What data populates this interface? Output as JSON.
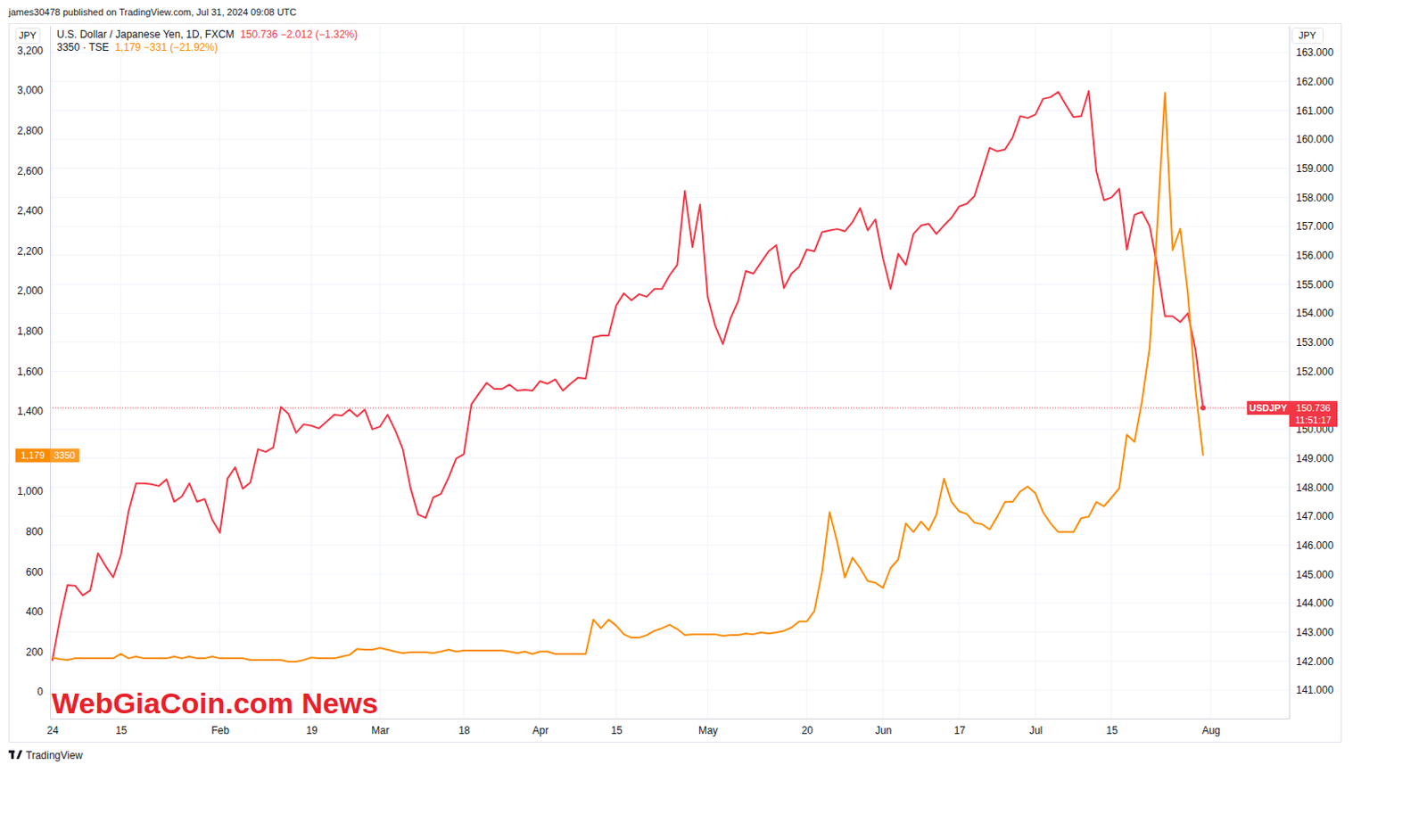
{
  "chart_data": {
    "type": "line",
    "title": "james30478 published on TradingView.com, Jul 31, 2024 09:08 UTC",
    "categories": [
      "24",
      null,
      null,
      null,
      null,
      null,
      null,
      null,
      null,
      "15",
      null,
      null,
      null,
      null,
      null,
      null,
      null,
      null,
      null,
      null,
      null,
      null,
      "Feb",
      null,
      null,
      null,
      null,
      null,
      null,
      null,
      null,
      null,
      null,
      null,
      "19",
      null,
      null,
      null,
      null,
      null,
      null,
      null,
      null,
      "Mar",
      null,
      null,
      null,
      null,
      null,
      null,
      null,
      null,
      null,
      null,
      "18",
      null,
      null,
      null,
      null,
      null,
      null,
      null,
      null,
      null,
      "Apr",
      null,
      null,
      null,
      null,
      null,
      null,
      null,
      null,
      null,
      "15",
      null,
      null,
      null,
      null,
      null,
      null,
      null,
      null,
      null,
      null,
      null,
      "May",
      null,
      null,
      null,
      null,
      null,
      null,
      null,
      null,
      null,
      null,
      null,
      null,
      "20",
      null,
      null,
      null,
      null,
      null,
      null,
      null,
      null,
      null,
      "Jun",
      null,
      null,
      null,
      null,
      null,
      null,
      null,
      null,
      null,
      "17",
      null,
      null,
      null,
      null,
      null,
      null,
      null,
      null,
      null,
      "Jul",
      null,
      null,
      null,
      null,
      null,
      null,
      null,
      null,
      null,
      "15",
      null,
      null,
      null,
      null,
      null,
      null,
      null,
      null,
      null,
      null,
      null,
      null,
      "Aug",
      null,
      null,
      null,
      null,
      null,
      null,
      null,
      null,
      null,
      null
    ],
    "series": [
      {
        "name": "U.S. Dollar / Japanese Yen, 1D, FXCM",
        "color": "#f23645",
        "axis": "y2",
        "values": [
          142.01,
          143.43,
          144.62,
          144.6,
          144.27,
          144.44,
          145.72,
          145.28,
          144.89,
          145.66,
          147.15,
          148.13,
          148.13,
          148.1,
          148.04,
          148.27,
          147.5,
          147.68,
          148.13,
          147.5,
          147.59,
          146.88,
          146.43,
          148.3,
          148.69,
          147.95,
          148.16,
          149.31,
          149.22,
          149.37,
          150.77,
          150.53,
          149.88,
          150.17,
          150.12,
          150.03,
          150.26,
          150.5,
          150.47,
          150.68,
          150.44,
          150.68,
          150.0,
          150.09,
          150.5,
          149.97,
          149.31,
          147.98,
          147.06,
          146.94,
          147.65,
          147.77,
          148.33,
          148.99,
          149.14,
          150.86,
          151.24,
          151.6,
          151.39,
          151.39,
          151.54,
          151.33,
          151.36,
          151.33,
          151.66,
          151.57,
          151.72,
          151.33,
          151.57,
          151.78,
          151.75,
          153.17,
          153.23,
          153.23,
          154.27,
          154.69,
          154.45,
          154.66,
          154.57,
          154.84,
          154.84,
          155.31,
          155.67,
          158.22,
          156.29,
          157.75,
          154.57,
          153.56,
          152.94,
          153.83,
          154.42,
          155.46,
          155.37,
          155.76,
          156.14,
          156.35,
          154.87,
          155.37,
          155.61,
          156.2,
          156.14,
          156.8,
          156.86,
          156.91,
          156.83,
          157.15,
          157.63,
          156.86,
          157.24,
          155.9,
          154.84,
          156.05,
          155.67,
          156.74,
          157.03,
          157.09,
          156.74,
          157.03,
          157.3,
          157.69,
          157.78,
          158.04,
          158.87,
          159.71,
          159.59,
          159.65,
          160.06,
          160.8,
          160.74,
          160.86,
          161.4,
          161.46,
          161.64,
          161.19,
          160.77,
          160.8,
          161.67,
          158.9,
          157.9,
          158.0,
          158.3,
          156.2,
          157.4,
          157.5,
          157.0,
          155.6,
          153.9,
          153.9,
          153.7,
          154.0,
          152.748,
          150.736,
          null,
          null,
          null,
          null,
          null,
          null,
          null,
          null,
          null,
          null,
          null
        ]
      },
      {
        "name": "3350 · TSE",
        "color": "#fb8c00",
        "values": [
          171,
          163,
          159,
          167,
          167,
          167,
          167,
          167,
          167,
          189,
          167,
          176,
          167,
          167,
          167,
          167,
          176,
          167,
          176,
          167,
          167,
          176,
          167,
          167,
          167,
          167,
          159,
          159,
          159,
          159,
          159,
          150,
          150,
          159,
          171,
          167,
          167,
          167,
          176,
          184,
          214,
          210,
          210,
          219,
          210,
          201,
          193,
          197,
          197,
          197,
          193,
          201,
          210,
          201,
          206,
          206,
          206,
          206,
          206,
          206,
          201,
          193,
          201,
          189,
          201,
          201,
          189,
          189,
          189,
          189,
          189,
          360,
          317,
          360,
          330,
          287,
          270,
          270,
          283,
          304,
          317,
          334,
          313,
          283,
          287,
          287,
          287,
          287,
          279,
          283,
          283,
          291,
          287,
          296,
          291,
          296,
          304,
          321,
          351,
          351,
          403,
          596,
          896,
          746,
          570,
          669,
          617,
          553,
          544,
          519,
          617,
          660,
          840,
          797,
          849,
          806,
          883,
          1063,
          947,
          900,
          887,
          844,
          836,
          810,
          874,
          947,
          947,
          999,
          1024,
          990,
          896,
          840,
          797,
          797,
          797,
          866,
          874,
          947,
          926,
          969,
          1016,
          1282,
          1247,
          1453,
          1719,
          2332,
          2988,
          2203,
          2310,
          1989,
          1510,
          1179,
          null,
          null,
          null,
          null,
          null,
          null,
          null,
          null,
          null,
          null,
          null
        ]
      }
    ],
    "ylim": [
      -133,
      3322
    ],
    "yticks": [
      0,
      200,
      400,
      600,
      800,
      {
        "value": 1000,
        "label": "1,000"
      },
      {
        "value": 1400,
        "label": "1,400"
      },
      {
        "value": 1600,
        "label": "1,600"
      },
      {
        "value": 1800,
        "label": "1,800"
      },
      {
        "value": 2000,
        "label": "2,000"
      },
      {
        "value": 2200,
        "label": "2,200"
      },
      {
        "value": 2400,
        "label": "2,400"
      },
      {
        "value": 2600,
        "label": "2,600"
      },
      {
        "value": 2800,
        "label": "2,800"
      },
      {
        "value": 3000,
        "label": "3,000"
      },
      {
        "value": 3200,
        "label": "3,200"
      }
    ],
    "y2lim": [
      140.02,
      163.92
    ],
    "y2ticks": [
      {
        "value": 141,
        "label": "141.000"
      },
      {
        "value": 142,
        "label": "142.000"
      },
      {
        "value": 143,
        "label": "143.000"
      },
      {
        "value": 144,
        "label": "144.000"
      },
      {
        "value": 145,
        "label": "145.000"
      },
      {
        "value": 146,
        "label": "146.000"
      },
      {
        "value": 147,
        "label": "147.000"
      },
      {
        "value": 148,
        "label": "148.000"
      },
      {
        "value": 149,
        "label": "149.000"
      },
      {
        "value": 150,
        "label": "150.000"
      },
      {
        "value": 152,
        "label": "152.000"
      },
      {
        "value": 153,
        "label": "153.000"
      },
      {
        "value": 154,
        "label": "154.000"
      },
      {
        "value": 155,
        "label": "155.000"
      },
      {
        "value": 156,
        "label": "156.000"
      },
      {
        "value": 157,
        "label": "157.000"
      },
      {
        "value": 158,
        "label": "158.000"
      },
      {
        "value": 159,
        "label": "159.000"
      },
      {
        "value": 160,
        "label": "160.000"
      },
      {
        "value": 161,
        "label": "161.000"
      },
      {
        "value": 162,
        "label": "162.000"
      },
      {
        "value": 163,
        "label": "163.000"
      }
    ],
    "grid": true,
    "legend": "top-left",
    "annotations": [
      "150.736 −2.012 (−1.32%)",
      "1,179 −331 (−21.92%)",
      "USDJPY",
      "150.736",
      "11:51:17",
      "1,179",
      "3350",
      "JPY",
      "JPY",
      "WebGiaCoin.com News",
      "TradingView"
    ]
  }
}
